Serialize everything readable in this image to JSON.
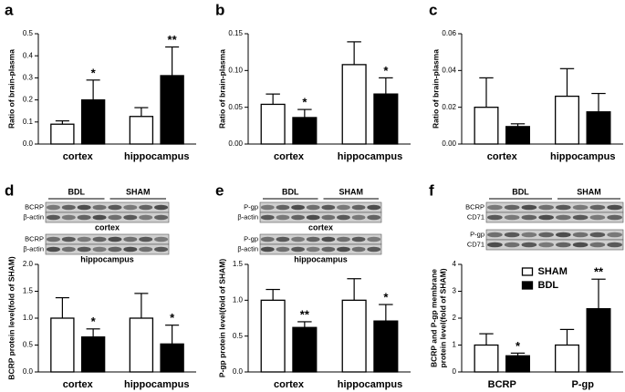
{
  "chart_data": [
    {
      "type": "bar",
      "panel": "a",
      "ylabel": [
        "Ratio of brain-plasma"
      ],
      "categories": [
        "cortex",
        "hippocampus"
      ],
      "series": [
        {
          "name": "SHAM",
          "color": "#ffffff",
          "values": [
            0.09,
            0.125
          ],
          "errors": [
            0.015,
            0.04
          ]
        },
        {
          "name": "BDL",
          "color": "#000000",
          "values": [
            0.2,
            0.31
          ],
          "errors": [
            0.09,
            0.13
          ],
          "annotations": [
            "*",
            "**"
          ]
        }
      ],
      "ylim": [
        0,
        0.5
      ],
      "yticks": [
        {
          "value": 0,
          "label": "0.0"
        },
        0.1,
        0.2,
        0.3,
        0.4,
        0.5
      ]
    },
    {
      "type": "bar",
      "panel": "b",
      "ylabel": [
        "Ratio of brain-plasma"
      ],
      "categories": [
        "cortex",
        "hippocampus"
      ],
      "series": [
        {
          "name": "SHAM",
          "color": "#ffffff",
          "values": [
            0.054,
            0.108
          ],
          "errors": [
            0.014,
            0.031
          ]
        },
        {
          "name": "BDL",
          "color": "#000000",
          "values": [
            0.036,
            0.068
          ],
          "errors": [
            0.011,
            0.022
          ],
          "annotations": [
            "*",
            "*"
          ]
        }
      ],
      "ylim": [
        0,
        0.15
      ],
      "yticks": [
        {
          "value": 0,
          "label": "0.00"
        },
        0.05,
        {
          "value": 0.1,
          "label": "0.10"
        },
        0.15
      ]
    },
    {
      "type": "bar",
      "panel": "c",
      "ylabel": [
        "Ratio of brain-plasma"
      ],
      "categories": [
        "cortex",
        "hippocampus"
      ],
      "series": [
        {
          "name": "SHAM",
          "color": "#ffffff",
          "values": [
            0.02,
            0.026
          ],
          "errors": [
            0.016,
            0.015
          ]
        },
        {
          "name": "BDL",
          "color": "#000000",
          "values": [
            0.0095,
            0.0175
          ],
          "errors": [
            0.0015,
            0.01
          ]
        }
      ],
      "ylim": [
        0,
        0.06
      ],
      "yticks": [
        {
          "value": 0,
          "label": "0.00"
        },
        0.02,
        0.04,
        0.06
      ]
    },
    {
      "type": "bar",
      "panel": "d",
      "ylabel": [
        "BCRP protein level(fold of SHAM)"
      ],
      "categories": [
        "cortex",
        "hippocampus"
      ],
      "blot": {
        "groups": [
          "BDL",
          "SHAM"
        ],
        "sections": [
          {
            "rows": [
              "BCRP",
              "β-actin"
            ],
            "caption": "cortex"
          },
          {
            "rows": [
              "BCRP",
              "β-actin"
            ],
            "caption": "hippocampus"
          }
        ]
      },
      "series": [
        {
          "name": "SHAM",
          "color": "#ffffff",
          "values": [
            1.0,
            1.0
          ],
          "errors": [
            0.38,
            0.46
          ]
        },
        {
          "name": "BDL",
          "color": "#000000",
          "values": [
            0.65,
            0.52
          ],
          "errors": [
            0.15,
            0.35
          ],
          "annotations": [
            "*",
            "*"
          ]
        }
      ],
      "ylim": [
        0,
        2
      ],
      "yticks": [
        {
          "value": 0,
          "label": "0.0"
        },
        0.5,
        {
          "value": 1,
          "label": "1.0"
        },
        1.5,
        {
          "value": 2,
          "label": "2.0"
        }
      ]
    },
    {
      "type": "bar",
      "panel": "e",
      "ylabel": [
        "P-gp protein level(fold of SHAM)"
      ],
      "categories": [
        "cortex",
        "hippocampus"
      ],
      "blot": {
        "groups": [
          "BDL",
          "SHAM"
        ],
        "sections": [
          {
            "rows": [
              "P-gp",
              "β-actin"
            ],
            "caption": "cortex"
          },
          {
            "rows": [
              "P-gp",
              "β-actin"
            ],
            "caption": "hippocampus"
          }
        ]
      },
      "series": [
        {
          "name": "SHAM",
          "color": "#ffffff",
          "values": [
            1.0,
            1.0
          ],
          "errors": [
            0.15,
            0.3
          ]
        },
        {
          "name": "BDL",
          "color": "#000000",
          "values": [
            0.62,
            0.71
          ],
          "errors": [
            0.08,
            0.23
          ],
          "annotations": [
            "**",
            "*"
          ]
        }
      ],
      "ylim": [
        0,
        1.5
      ],
      "yticks": [
        {
          "value": 0,
          "label": "0.0"
        },
        0.5,
        {
          "value": 1,
          "label": "1.0"
        },
        1.5
      ]
    },
    {
      "type": "bar",
      "panel": "f",
      "ylabel": [
        "BCRP and P-gp membrane",
        "protein level(fold of SHAM)"
      ],
      "categories": [
        "BCRP",
        "P-gp"
      ],
      "blot": {
        "groups": [
          "BDL",
          "SHAM"
        ],
        "sections": [
          {
            "rows": [
              "BCRP",
              "CD71"
            ]
          },
          {
            "rows": [
              "P-gp",
              "CD71"
            ]
          }
        ]
      },
      "series": [
        {
          "name": "SHAM",
          "color": "#ffffff",
          "values": [
            1.0,
            1.0
          ],
          "errors": [
            0.42,
            0.58
          ]
        },
        {
          "name": "BDL",
          "color": "#000000",
          "values": [
            0.6,
            2.35
          ],
          "errors": [
            0.1,
            1.1
          ],
          "annotations": [
            "*",
            "**"
          ]
        }
      ],
      "ylim": [
        0,
        4
      ],
      "yticks": [
        0,
        1,
        2,
        3,
        4
      ],
      "legend": "upper center"
    }
  ]
}
